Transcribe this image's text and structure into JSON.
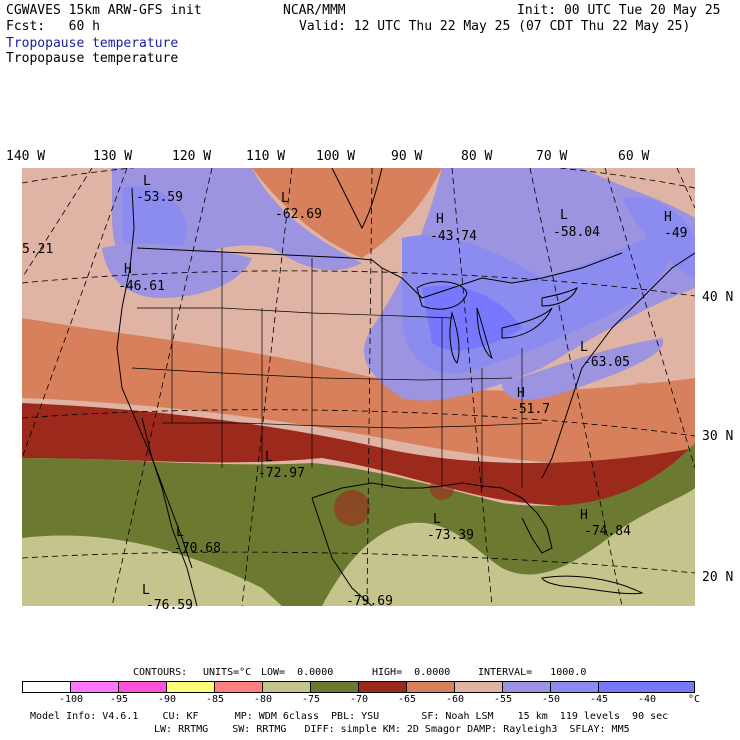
{
  "header": {
    "model": "CGWAVES 15km ARW-GFS init",
    "center": "NCAR/MMM",
    "init": "Init: 00 UTC Tue 20 May 25",
    "fcst": "Fcst:   60 h",
    "valid": "Valid: 12 UTC Thu 22 May 25 (07 CDT Thu 22 May 25)",
    "field_title_1": "Tropopause temperature",
    "field_title_2": "Tropopause temperature"
  },
  "map": {
    "lon_labels": [
      "140 W",
      "130 W",
      "120 W",
      "110 W",
      "100 W",
      "90 W",
      "80 W",
      "70 W",
      "60 W"
    ],
    "lat_labels": [
      "40 N",
      "30 N",
      "20 N"
    ],
    "extrema": [
      {
        "letter": "L",
        "value": "-53.59"
      },
      {
        "letter": "L",
        "value": "-62.69"
      },
      {
        "letter": "H",
        "value": "-43.74"
      },
      {
        "letter": "L",
        "value": "-58.04"
      },
      {
        "letter": "H",
        "value": "-49"
      },
      {
        "letter": "",
        "value": "5.21"
      },
      {
        "letter": "H",
        "value": "-46.61"
      },
      {
        "letter": "L",
        "value": "-63.05"
      },
      {
        "letter": "H",
        "value": "-51.7"
      },
      {
        "letter": "L",
        "value": "-72.97"
      },
      {
        "letter": "L",
        "value": "-73.39"
      },
      {
        "letter": "H",
        "value": "-74.84"
      },
      {
        "letter": "L",
        "value": "-70.68"
      },
      {
        "letter": "L",
        "value": "-76.59"
      },
      {
        "letter": "",
        "value": "-79.69"
      }
    ]
  },
  "contours": {
    "label": "CONTOURS:",
    "units": "UNITS=°C",
    "low": "LOW=  0.0000",
    "high": "HIGH=  0.0000",
    "interval": "INTERVAL=   1000.0"
  },
  "legend": {
    "labels": [
      "-100",
      "-95",
      "-90",
      "-85",
      "-80",
      "-75",
      "-70",
      "-65",
      "-60",
      "-55",
      "-50",
      "-45",
      "-40",
      "°C"
    ],
    "colors": [
      "#ffffff",
      "#ff78ff",
      "#ff50d8",
      "#ffff78",
      "#ff8080",
      "#c4c48c",
      "#6b7a30",
      "#9c2a1c",
      "#d8805c",
      "#e0b4a4",
      "#9c94e0",
      "#8c8cf0",
      "#7878ff"
    ]
  },
  "footer": {
    "line1": "Model Info: V4.6.1    CU: KF      MP: WDM 6class  PBL: YSU       SF: Noah LSM    15 km  119 levels  90 sec",
    "line2": "LW: RRTMG    SW: RRTMG   DIFF: simple KM: 2D Smagor DAMP: Rayleigh3  SFLAY: MM5"
  }
}
